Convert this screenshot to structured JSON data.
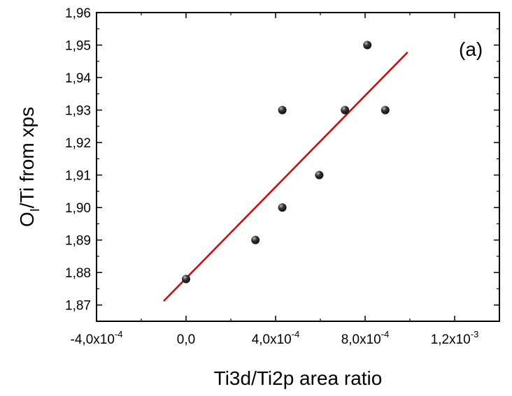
{
  "chart_data": {
    "type": "scatter",
    "panel_label": "(a)",
    "xlabel": "Ti3d/Ti2p area ratio",
    "ylabel_main": "O",
    "ylabel_sub": "I",
    "ylabel_rest": "/Ti from xps",
    "xlim": [
      -0.0004,
      0.0014
    ],
    "ylim": [
      1.865,
      1.96
    ],
    "x_ticks": [
      {
        "value": -0.0004,
        "mantissa": "-4,0x10",
        "exp": "-4"
      },
      {
        "value": 0.0,
        "mantissa": "0,0",
        "exp": ""
      },
      {
        "value": 0.0004,
        "mantissa": "4,0x10",
        "exp": "-4"
      },
      {
        "value": 0.0008,
        "mantissa": "8,0x10",
        "exp": "-4"
      },
      {
        "value": 0.0012,
        "mantissa": "1,2x10",
        "exp": "-3"
      }
    ],
    "y_ticks": [
      {
        "value": 1.87,
        "label": "1,87"
      },
      {
        "value": 1.88,
        "label": "1,88"
      },
      {
        "value": 1.89,
        "label": "1,89"
      },
      {
        "value": 1.9,
        "label": "1,90"
      },
      {
        "value": 1.91,
        "label": "1,91"
      },
      {
        "value": 1.92,
        "label": "1,92"
      },
      {
        "value": 1.93,
        "label": "1,93"
      },
      {
        "value": 1.94,
        "label": "1,94"
      },
      {
        "value": 1.95,
        "label": "1,95"
      },
      {
        "value": 1.96,
        "label": "1,96"
      }
    ],
    "points": [
      {
        "x": 0.0,
        "y": 1.878
      },
      {
        "x": 0.00031,
        "y": 1.89
      },
      {
        "x": 0.00043,
        "y": 1.9
      },
      {
        "x": 0.00043,
        "y": 1.93
      },
      {
        "x": 0.000595,
        "y": 1.91
      },
      {
        "x": 0.00071,
        "y": 1.93
      },
      {
        "x": 0.00081,
        "y": 1.95
      },
      {
        "x": 0.00089,
        "y": 1.93
      }
    ],
    "fit_line": {
      "x": [
        -0.0001,
        0.00099
      ],
      "y": [
        1.8712,
        1.9478
      ],
      "color": "#e00000"
    },
    "point_color": "#111111",
    "grid": false,
    "legend": false
  }
}
